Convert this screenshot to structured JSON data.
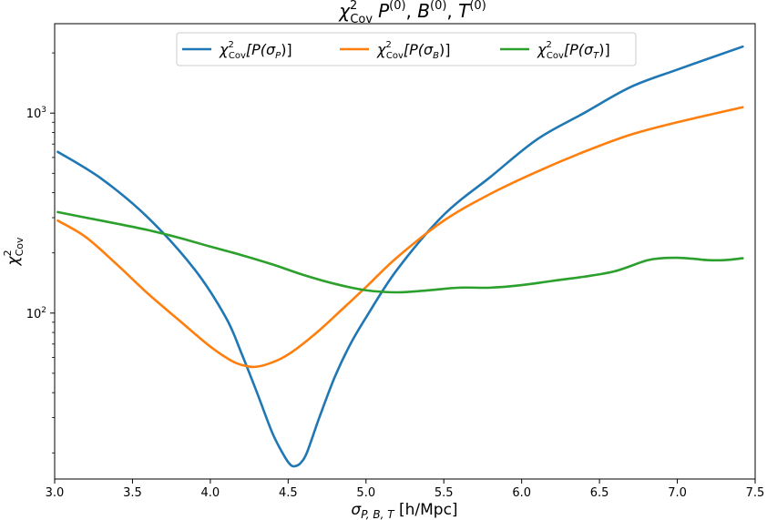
{
  "chart_data": {
    "type": "line",
    "title": "χ²Cov P(0), B(0), T(0)",
    "title_parts": {
      "chi": "χ",
      "chi_sup": "2",
      "chi_sub": "Cov",
      "p": "P",
      "p_sup": "(0)",
      "b": "B",
      "b_sup": "(0)",
      "t": "T",
      "t_sup": "(0)",
      "sep": ", "
    },
    "xlabel": "σP, B, T [h/Mpc]",
    "xlabel_parts": {
      "sigma": "σ",
      "sub": "P, B, T",
      "rest": " [h/Mpc]"
    },
    "ylabel": "χ²Cov",
    "ylabel_parts": {
      "chi": "χ",
      "sup": "2",
      "sub": "Cov"
    },
    "xlim": [
      3.0,
      7.5
    ],
    "ylim": [
      14.8,
      2800
    ],
    "yscale": "log",
    "grid": false,
    "legend_position": "top-center",
    "x_ticks": [
      "3.0",
      "3.5",
      "4.0",
      "4.5",
      "5.0",
      "5.5",
      "6.0",
      "6.5",
      "7.0",
      "7.5"
    ],
    "y_ticks": [
      {
        "value": 100,
        "base": "10",
        "exp": "2"
      },
      {
        "value": 1000,
        "base": "10",
        "exp": "3"
      }
    ],
    "series": [
      {
        "name": "χ²Cov[P(σP)]",
        "legend": {
          "chi": "χ",
          "sup": "2",
          "sub": "Cov",
          "open": "[P(",
          "sigma": "σ",
          "s": "P",
          "close": ")]"
        },
        "color": "#1f77b4",
        "x": [
          3.02,
          3.3,
          3.6,
          3.9,
          4.1,
          4.2,
          4.3,
          4.4,
          4.48,
          4.52,
          4.55,
          4.58,
          4.62,
          4.7,
          4.8,
          4.9,
          5.0,
          5.2,
          5.5,
          5.8,
          6.1,
          6.4,
          6.7,
          7.0,
          7.42
        ],
        "y": [
          640,
          470,
          300,
          165,
          95,
          63,
          40,
          25,
          19,
          17.3,
          17.2,
          17.8,
          20,
          30,
          48,
          70,
          95,
          165,
          310,
          480,
          740,
          1000,
          1350,
          1650,
          2150
        ]
      },
      {
        "name": "χ²Cov[P(σB)]",
        "legend": {
          "chi": "χ",
          "sup": "2",
          "sub": "Cov",
          "open": "[P(",
          "sigma": "σ",
          "s": "B",
          "close": ")]"
        },
        "color": "#ff7f0e",
        "x": [
          3.02,
          3.2,
          3.4,
          3.6,
          3.8,
          4.0,
          4.15,
          4.25,
          4.3,
          4.35,
          4.45,
          4.55,
          4.7,
          4.85,
          5.0,
          5.2,
          5.5,
          5.8,
          6.1,
          6.4,
          6.7,
          7.0,
          7.42
        ],
        "y": [
          290,
          240,
          175,
          125,
          92,
          68,
          57,
          54,
          54,
          55,
          59,
          66,
          82,
          105,
          135,
          190,
          290,
          395,
          510,
          640,
          780,
          900,
          1070
        ]
      },
      {
        "name": "χ²Cov[P(σT)]",
        "legend": {
          "chi": "χ",
          "sup": "2",
          "sub": "Cov",
          "open": "[P(",
          "sigma": "σ",
          "s": "T",
          "close": ")]"
        },
        "color": "#2ca02c",
        "x": [
          3.02,
          3.2,
          3.4,
          3.6,
          3.8,
          4.0,
          4.2,
          4.4,
          4.6,
          4.8,
          5.0,
          5.2,
          5.4,
          5.6,
          5.8,
          6.0,
          6.2,
          6.4,
          6.6,
          6.8,
          6.9,
          7.0,
          7.1,
          7.2,
          7.3,
          7.42
        ],
        "y": [
          320,
          300,
          280,
          260,
          238,
          215,
          195,
          175,
          155,
          140,
          130,
          127,
          130,
          134,
          134,
          138,
          145,
          152,
          162,
          183,
          188,
          189,
          187,
          184,
          184,
          188
        ]
      }
    ]
  }
}
